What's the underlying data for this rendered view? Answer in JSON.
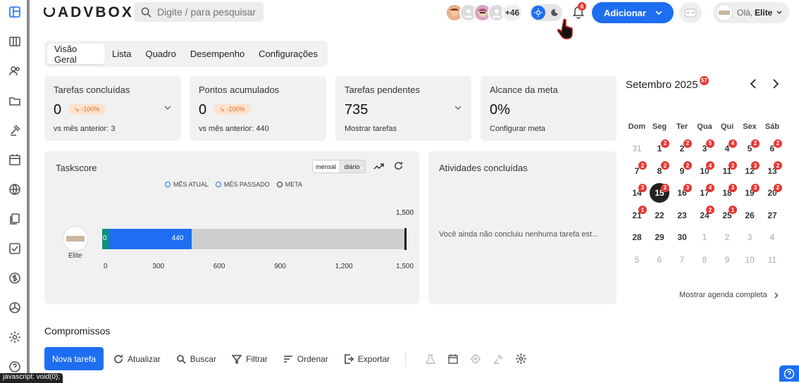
{
  "brand": {
    "logo_text": "ADVBOX"
  },
  "search": {
    "placeholder": "Digite / para pesquisar"
  },
  "header": {
    "extra_users": "+46",
    "notifications_count": "6",
    "add_label": "Adicionar",
    "greeting": "Olá,",
    "user_name": "Elite"
  },
  "tabs": [
    "Visão Geral",
    "Lista",
    "Quadro",
    "Desempenho",
    "Configurações"
  ],
  "cards": [
    {
      "title": "Tarefas concluídas",
      "value": "0",
      "delta": "-100%",
      "sub_label": "vs mês anterior:",
      "sub_value": "3"
    },
    {
      "title": "Pontos acumulados",
      "value": "0",
      "delta": "-100%",
      "sub_label": "vs mês anterior:",
      "sub_value": "440"
    },
    {
      "title": "Tarefas pendentes",
      "value": "735",
      "sub_label": "Mostrar tarefas"
    },
    {
      "title": "Alcance da meta",
      "value": "0%",
      "sub_label": "Configurar meta"
    }
  ],
  "taskscore": {
    "title": "Taskscore",
    "toggle": [
      "mensal",
      "diário"
    ],
    "legend": [
      "MÊS ATUAL",
      "MÊS PASSADO",
      "META"
    ],
    "user_label": "Elite"
  },
  "chart_data": {
    "type": "bar",
    "orientation": "horizontal",
    "categories": [
      "Elite"
    ],
    "series": [
      {
        "name": "MÊS ATUAL",
        "values": [
          0
        ]
      },
      {
        "name": "MÊS PASSADO",
        "values": [
          440
        ]
      },
      {
        "name": "META",
        "values": [
          1500
        ]
      }
    ],
    "xlim": [
      0,
      1500
    ],
    "xticks": [
      0,
      300,
      600,
      900,
      1200,
      1500
    ],
    "annotations": [
      "1,500"
    ]
  },
  "activities": {
    "title": "Atividades concluídas",
    "empty": "Você ainda não concluiu nenhuma tarefa est..."
  },
  "calendar": {
    "month": "Setembro 2025",
    "month_badge": "57",
    "weekdays": [
      "Dom",
      "Seg",
      "Ter",
      "Qua",
      "Qui",
      "Sex",
      "Sáb"
    ],
    "weeks": [
      [
        {
          "d": "31",
          "dim": true
        },
        {
          "d": "1",
          "b": "2"
        },
        {
          "d": "2",
          "b": "2"
        },
        {
          "d": "3",
          "b": "5"
        },
        {
          "d": "4",
          "b": "4"
        },
        {
          "d": "5",
          "b": "2"
        },
        {
          "d": "6",
          "b": "2"
        }
      ],
      [
        {
          "d": "7",
          "b": "2"
        },
        {
          "d": "8",
          "b": "2"
        },
        {
          "d": "9",
          "b": "2"
        },
        {
          "d": "10",
          "b": "4"
        },
        {
          "d": "11",
          "b": "3"
        },
        {
          "d": "12",
          "b": "3"
        },
        {
          "d": "13",
          "b": "2"
        }
      ],
      [
        {
          "d": "14",
          "b": "3"
        },
        {
          "d": "15",
          "today": true,
          "b": "2"
        },
        {
          "d": "16",
          "b": "3"
        },
        {
          "d": "17",
          "b": "4"
        },
        {
          "d": "18",
          "b": "3"
        },
        {
          "d": "19",
          "b": "3"
        },
        {
          "d": "20",
          "b": "2"
        }
      ],
      [
        {
          "d": "21",
          "b": "1"
        },
        {
          "d": "22"
        },
        {
          "d": "23"
        },
        {
          "d": "24",
          "b": "2"
        },
        {
          "d": "25",
          "b": "1"
        },
        {
          "d": "26"
        },
        {
          "d": "27"
        }
      ],
      [
        {
          "d": "28"
        },
        {
          "d": "29"
        },
        {
          "d": "30"
        },
        {
          "d": "1",
          "dim": true
        },
        {
          "d": "2",
          "dim": true
        },
        {
          "d": "3",
          "dim": true
        },
        {
          "d": "4",
          "dim": true
        }
      ],
      [
        {
          "d": "5",
          "dim": true
        },
        {
          "d": "6",
          "dim": true
        },
        {
          "d": "7",
          "dim": true
        },
        {
          "d": "8",
          "dim": true
        },
        {
          "d": "9",
          "dim": true
        },
        {
          "d": "10",
          "dim": true
        },
        {
          "d": "11",
          "dim": true
        }
      ]
    ],
    "show_all": "Mostrar agenda completa"
  },
  "appointments": {
    "title": "Compromissos",
    "new_task": "Nova tarefa",
    "refresh": "Atualizar",
    "search": "Buscar",
    "filter": "Filtrar",
    "sort": "Ordenar",
    "export": "Exportar"
  },
  "status_bar": {
    "url": "javascript: void(0);"
  },
  "colors": {
    "primary": "#1e6ef2",
    "teal": "#0e8f7e",
    "badge": "#e53935",
    "delta_bg": "#fde2cf",
    "delta_fg": "#e56b1f"
  }
}
